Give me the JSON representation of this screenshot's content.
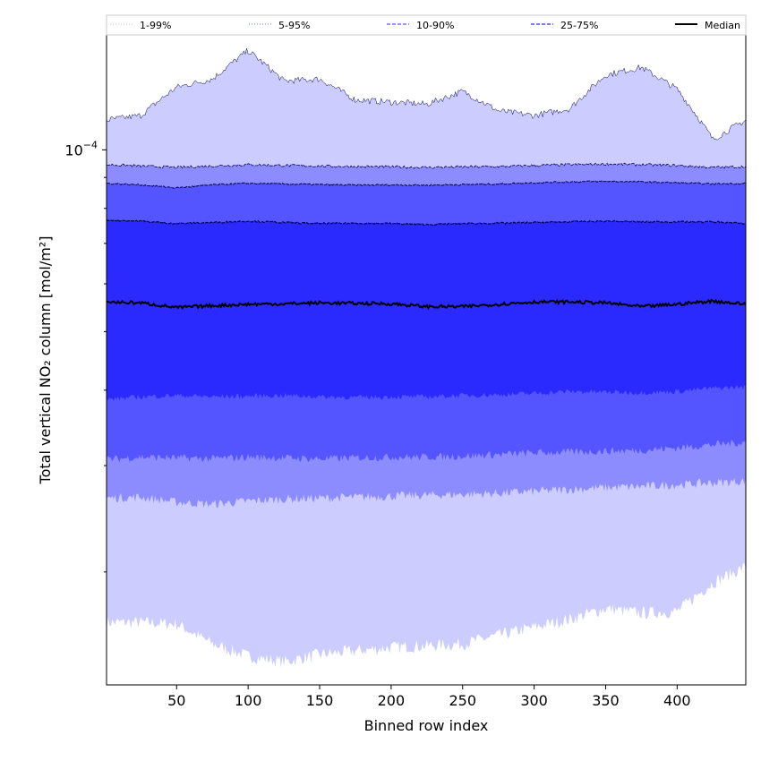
{
  "chart_data": {
    "type": "area",
    "title": "",
    "xlabel": "Binned row index",
    "ylabel": "Total vertical NO₂ column [mol/m²]",
    "yscale": "log",
    "xlim": [
      1,
      448
    ],
    "ylim": [
      1.3e-05,
      0.000155
    ],
    "x_ticks": [
      50,
      100,
      150,
      200,
      250,
      300,
      350,
      400
    ],
    "y_major_tick": {
      "value": 0.0001,
      "label_base": "10",
      "label_exp": "−4"
    },
    "y_minor_ticks": [
      2e-05,
      3e-05,
      4e-05,
      5e-05,
      6e-05,
      7e-05,
      8e-05,
      9e-05
    ],
    "legend": {
      "position": "top, spanning full width",
      "entries": [
        {
          "label": "1-99%",
          "color": "#ccccff",
          "style": "dotted"
        },
        {
          "label": "5-95%",
          "color": "#8c8cff",
          "style": "dotted"
        },
        {
          "label": "10-90%",
          "color": "#5555ff",
          "style": "dashed"
        },
        {
          "label": "25-75%",
          "color": "#2a2aff",
          "style": "dashed"
        },
        {
          "label": "Median",
          "color": "#000000",
          "style": "solid"
        }
      ]
    },
    "x_anchor": [
      1,
      25,
      50,
      75,
      100,
      125,
      150,
      175,
      200,
      225,
      250,
      275,
      300,
      325,
      350,
      375,
      400,
      425,
      448
    ],
    "series": [
      {
        "name": "1-99%",
        "color": "#ccccff",
        "lower": [
          1.65e-05,
          1.65e-05,
          1.64e-05,
          1.52e-05,
          1.45e-05,
          1.42e-05,
          1.46e-05,
          1.48e-05,
          1.5e-05,
          1.51e-05,
          1.52e-05,
          1.57e-05,
          1.62e-05,
          1.67e-05,
          1.74e-05,
          1.71e-05,
          1.72e-05,
          1.92e-05,
          2.04e-05
        ],
        "upper": [
          0.000112,
          0.000114,
          0.000127,
          0.000131,
          0.000146,
          0.00013,
          0.000131,
          0.000121,
          0.00012,
          0.000119,
          0.000125,
          0.000116,
          0.000114,
          0.000117,
          0.000133,
          0.000137,
          0.000126,
          0.000104,
          0.000112
        ]
      },
      {
        "name": "5-95%",
        "color": "#8c8cff",
        "lower": [
          2.65e-05,
          2.66e-05,
          2.61e-05,
          2.59e-05,
          2.62e-05,
          2.64e-05,
          2.65e-05,
          2.66e-05,
          2.67e-05,
          2.68e-05,
          2.69e-05,
          2.7e-05,
          2.72e-05,
          2.74e-05,
          2.76e-05,
          2.77e-05,
          2.79e-05,
          2.81e-05,
          2.83e-05
        ],
        "upper": [
          9.45e-05,
          9.4e-05,
          9.35e-05,
          9.4e-05,
          9.45e-05,
          9.42e-05,
          9.4e-05,
          9.38e-05,
          9.37e-05,
          9.35e-05,
          9.37e-05,
          9.38e-05,
          9.42e-05,
          9.45e-05,
          9.47e-05,
          9.45e-05,
          9.42e-05,
          9.35e-05,
          9.38e-05
        ]
      },
      {
        "name": "10-90%",
        "color": "#5555ff",
        "lower": [
          3.07e-05,
          3.1e-05,
          3.09e-05,
          3.08e-05,
          3.1e-05,
          3.09e-05,
          3.08e-05,
          3.09e-05,
          3.1e-05,
          3.1e-05,
          3.11e-05,
          3.13e-05,
          3.15e-05,
          3.16e-05,
          3.17e-05,
          3.18e-05,
          3.21e-05,
          3.25e-05,
          3.28e-05
        ],
        "upper": [
          8.8e-05,
          8.75e-05,
          8.65e-05,
          8.75e-05,
          8.8e-05,
          8.78e-05,
          8.76e-05,
          8.74e-05,
          8.75e-05,
          8.74e-05,
          8.76e-05,
          8.78e-05,
          8.82e-05,
          8.85e-05,
          8.87e-05,
          8.85e-05,
          8.82e-05,
          8.78e-05,
          8.8e-05
        ]
      },
      {
        "name": "25-75%",
        "color": "#2a2aff",
        "lower": [
          3.86e-05,
          3.9e-05,
          3.92e-05,
          3.9e-05,
          3.91e-05,
          3.92e-05,
          3.9e-05,
          3.89e-05,
          3.9e-05,
          3.9e-05,
          3.92e-05,
          3.93e-05,
          3.95e-05,
          3.98e-05,
          3.97e-05,
          3.96e-05,
          3.98e-05,
          4.03e-05,
          4.05e-05
        ],
        "upper": [
          7.65e-05,
          7.62e-05,
          7.55e-05,
          7.58e-05,
          7.62e-05,
          7.58e-05,
          7.55e-05,
          7.56e-05,
          7.55e-05,
          7.52e-05,
          7.55e-05,
          7.56e-05,
          7.58e-05,
          7.6e-05,
          7.62e-05,
          7.6e-05,
          7.6e-05,
          7.6e-05,
          7.55e-05
        ]
      },
      {
        "name": "Median",
        "color": "#000000",
        "values": [
          5.6e-05,
          5.58e-05,
          5.48e-05,
          5.52e-05,
          5.55e-05,
          5.56e-05,
          5.58e-05,
          5.57e-05,
          5.56e-05,
          5.5e-05,
          5.5e-05,
          5.55e-05,
          5.6e-05,
          5.6e-05,
          5.58e-05,
          5.5e-05,
          5.55e-05,
          5.62e-05,
          5.55e-05
        ]
      }
    ]
  }
}
